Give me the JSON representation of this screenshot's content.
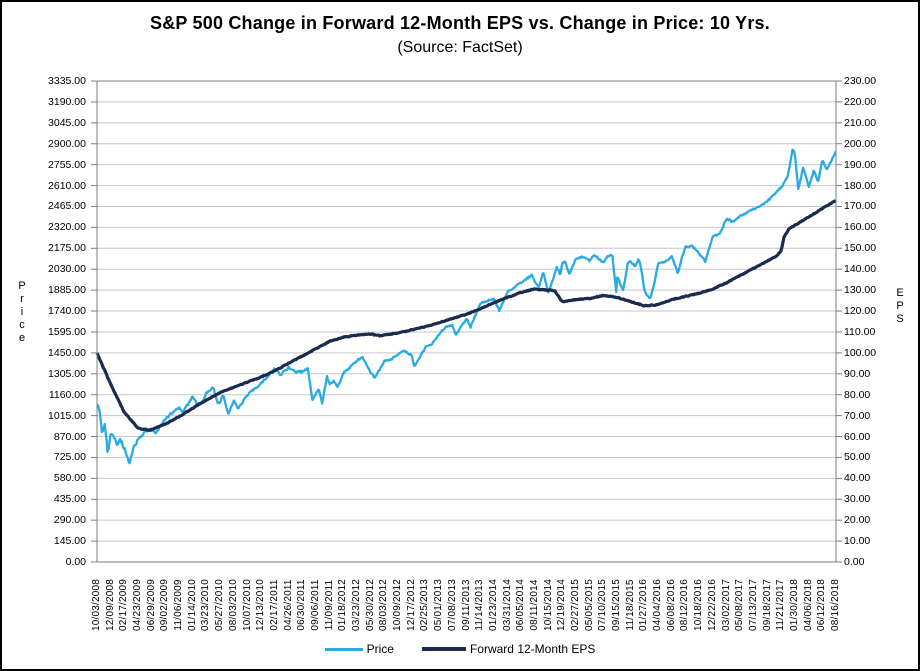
{
  "frame": {
    "background": "#ffffff",
    "border_color": "#000000"
  },
  "chart_data": {
    "type": "line",
    "title": "S&P 500 Change in Forward 12-Month EPS vs. Change in Price: 10 Yrs.",
    "subtitle": "(Source: FactSet)",
    "grid": true,
    "grid_color": "#c6c6c6",
    "border_color": "#7f7f7f",
    "legend_position": "bottom",
    "left_axis": {
      "title": "Price",
      "min": 0,
      "max": 3335,
      "tick_step": 145,
      "tick_labels": [
        "0.00",
        "145.00",
        "290.00",
        "435.00",
        "580.00",
        "725.00",
        "870.00",
        "1015.00",
        "1160.00",
        "1305.00",
        "1450.00",
        "1595.00",
        "1740.00",
        "1885.00",
        "2030.00",
        "2175.00",
        "2320.00",
        "2465.00",
        "2610.00",
        "2755.00",
        "2900.00",
        "3045.00",
        "3190.00",
        "3335.00"
      ]
    },
    "right_axis": {
      "title": "EPS",
      "min": 0,
      "max": 230,
      "tick_step": 10,
      "tick_labels": [
        "0.00",
        "10.00",
        "20.00",
        "30.00",
        "40.00",
        "50.00",
        "60.00",
        "70.00",
        "80.00",
        "90.00",
        "100.00",
        "110.00",
        "120.00",
        "130.00",
        "140.00",
        "150.00",
        "160.00",
        "170.00",
        "180.00",
        "190.00",
        "200.00",
        "210.00",
        "220.00",
        "230.00"
      ]
    },
    "x_axis": {
      "tick_labels": [
        "10/03/2008",
        "12/09/2008",
        "02/17/2009",
        "04/23/2009",
        "06/29/2009",
        "09/02/2009",
        "11/06/2009",
        "01/14/2010",
        "03/23/2010",
        "05/27/2010",
        "08/03/2010",
        "10/07/2010",
        "12/13/2010",
        "02/17/2011",
        "04/26/2011",
        "06/30/2011",
        "09/06/2011",
        "11/09/2011",
        "01/18/2012",
        "03/23/2012",
        "05/30/2012",
        "08/03/2012",
        "10/09/2012",
        "12/17/2012",
        "02/25/2013",
        "05/01/2013",
        "07/08/2013",
        "09/11/2013",
        "11/14/2013",
        "01/23/2014",
        "03/31/2014",
        "06/05/2014",
        "08/11/2014",
        "10/15/2014",
        "12/19/2014",
        "02/27/2015",
        "05/05/2015",
        "07/10/2015",
        "09/15/2015",
        "11/18/2015",
        "01/27/2016",
        "04/04/2016",
        "06/08/2016",
        "08/12/2016",
        "10/18/2016",
        "12/22/2016",
        "03/02/2017",
        "05/08/2017",
        "07/13/2017",
        "09/18/2017",
        "11/21/2017",
        "01/30/2018",
        "04/06/2018",
        "06/12/2018",
        "08/16/2018"
      ]
    },
    "series": [
      {
        "name": "Price",
        "axis": "left",
        "color": "#29ABE2",
        "values": [
          1099,
          888,
          789,
          851,
          927,
          994,
          1069,
          1148,
          1174,
          1103,
          1120,
          1158,
          1240,
          1343,
          1347,
          1321,
          1166,
          1230,
          1308,
          1397,
          1313,
          1391,
          1441,
          1430,
          1488,
          1582,
          1640,
          1689,
          1791,
          1828,
          1872,
          1940,
          1937,
          1862,
          2070,
          2104,
          2089,
          2077,
          1978,
          2083,
          1883,
          2066,
          2119,
          2184,
          2140,
          2261,
          2382,
          2399,
          2448,
          2504,
          2599,
          2822,
          2604,
          2787,
          2850
        ],
        "intra_detail": [
          [
            0.2,
            1056
          ],
          [
            0.35,
            899
          ],
          [
            0.55,
            955
          ],
          [
            0.8,
            752
          ],
          [
            1.25,
            870
          ],
          [
            1.5,
            805
          ],
          [
            1.7,
            850
          ],
          [
            2.35,
            676
          ],
          [
            2.7,
            800
          ],
          [
            3.5,
            905
          ],
          [
            4.3,
            895
          ],
          [
            5.5,
            1035
          ],
          [
            6.3,
            1042
          ],
          [
            7.3,
            1090
          ],
          [
            7.7,
            1110
          ],
          [
            8.5,
            1212
          ],
          [
            8.8,
            1105
          ],
          [
            9.2,
            1160
          ],
          [
            9.6,
            1022
          ],
          [
            10.3,
            1060
          ],
          [
            11.5,
            1200
          ],
          [
            13.4,
            1300
          ],
          [
            14.5,
            1315
          ],
          [
            15.4,
            1345
          ],
          [
            15.75,
            1119
          ],
          [
            16.2,
            1205
          ],
          [
            16.45,
            1099
          ],
          [
            16.8,
            1285
          ],
          [
            17.3,
            1255
          ],
          [
            17.6,
            1215
          ],
          [
            19.4,
            1419
          ],
          [
            20.3,
            1278
          ],
          [
            21.5,
            1405
          ],
          [
            22.5,
            1466
          ],
          [
            23.2,
            1353
          ],
          [
            23.6,
            1420
          ],
          [
            24.5,
            1515
          ],
          [
            25.5,
            1633
          ],
          [
            26.2,
            1573
          ],
          [
            27.3,
            1630
          ],
          [
            29.4,
            1742
          ],
          [
            31.8,
            1988
          ],
          [
            32.3,
            1909
          ],
          [
            32.6,
            2011
          ],
          [
            33.6,
            2050
          ],
          [
            33.85,
            1990
          ],
          [
            34.2,
            2090
          ],
          [
            34.5,
            1995
          ],
          [
            35.5,
            2115
          ],
          [
            36.3,
            2131
          ],
          [
            37.3,
            2120
          ],
          [
            37.65,
            2128
          ],
          [
            37.95,
            1867
          ],
          [
            38.2,
            1940
          ],
          [
            38.45,
            1882
          ],
          [
            38.8,
            2079
          ],
          [
            39.3,
            2050
          ],
          [
            39.6,
            2102
          ],
          [
            39.85,
            1990
          ],
          [
            40.1,
            1859
          ],
          [
            40.45,
            1829
          ],
          [
            40.7,
            1926
          ],
          [
            41.5,
            2080
          ],
          [
            42.45,
            2001
          ],
          [
            42.7,
            2099
          ],
          [
            43.5,
            2190
          ],
          [
            44.45,
            2085
          ],
          [
            45.5,
            2271
          ],
          [
            46.5,
            2355
          ],
          [
            48.5,
            2470
          ],
          [
            50.5,
            2680
          ],
          [
            50.85,
            2873
          ],
          [
            51.25,
            2581
          ],
          [
            51.6,
            2740
          ],
          [
            52.4,
            2718
          ],
          [
            52.7,
            2635
          ],
          [
            53.3,
            2720
          ],
          [
            53.7,
            2790
          ]
        ]
      },
      {
        "name": "Forward 12-Month EPS",
        "axis": "right",
        "color": "#1B2B4D",
        "values": [
          100,
          85,
          71.5,
          64,
          63.5,
          66,
          69.5,
          73.5,
          77.5,
          81,
          83.5,
          86,
          88.5,
          91.5,
          95,
          98.5,
          102,
          105.5,
          107.5,
          108.5,
          109,
          108.5,
          109.5,
          111,
          112.5,
          114.5,
          116.5,
          118.5,
          121,
          124,
          126.5,
          129,
          130.5,
          130,
          124.5,
          125.5,
          126,
          127.5,
          126.5,
          124.5,
          122.5,
          123,
          125.5,
          127,
          128.5,
          130.5,
          133.5,
          137,
          140.5,
          144,
          149,
          161,
          165,
          169,
          173
        ],
        "intra_detail": [
          [
            3.9,
            63
          ],
          [
            20.7,
            108.2
          ],
          [
            33.45,
            129.8
          ],
          [
            33.95,
            124.8
          ],
          [
            49.7,
            146.5
          ],
          [
            50.2,
            155.5
          ],
          [
            50.6,
            159.5
          ]
        ]
      }
    ]
  }
}
